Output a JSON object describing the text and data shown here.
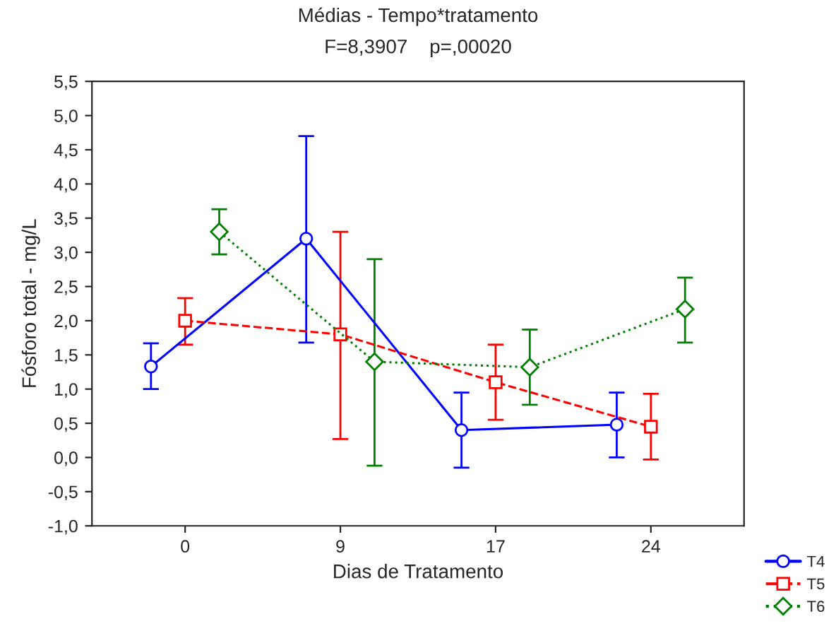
{
  "chart_data": {
    "type": "line",
    "title": "Médias - Tempo*tratamento",
    "subtitle": "F=8,3907    p=,00020",
    "xlabel": "Dias de Tratamento",
    "ylabel": "Fósforo total - mg/L",
    "categories": [
      "0",
      "9",
      "17",
      "24"
    ],
    "series": [
      {
        "name": "T4",
        "color": "#0000ff",
        "marker": "circle",
        "line_style": "solid",
        "values": [
          1.33,
          3.2,
          0.4,
          0.48
        ],
        "errors": [
          [
            1.0,
            1.67
          ],
          [
            1.68,
            4.7
          ],
          [
            -0.15,
            0.95
          ],
          [
            0.0,
            0.95
          ]
        ]
      },
      {
        "name": "T5",
        "color": "#ff0000",
        "marker": "square",
        "line_style": "dashed",
        "values": [
          2.0,
          1.8,
          1.1,
          0.45
        ],
        "errors": [
          [
            1.65,
            2.33
          ],
          [
            0.27,
            3.3
          ],
          [
            0.55,
            1.65
          ],
          [
            -0.03,
            0.93
          ]
        ]
      },
      {
        "name": "T6",
        "color": "#008000",
        "marker": "diamond",
        "line_style": "dotted",
        "values": [
          3.3,
          1.4,
          1.32,
          2.17
        ],
        "errors": [
          [
            2.97,
            3.63
          ],
          [
            -0.12,
            2.9
          ],
          [
            0.77,
            1.87
          ],
          [
            1.68,
            2.63
          ]
        ]
      }
    ],
    "ylim": [
      -1.0,
      5.5
    ],
    "yticks": [
      {
        "value": -1.0,
        "label": "-1,0"
      },
      {
        "value": -0.5,
        "label": "-0,5"
      },
      {
        "value": 0.0,
        "label": "0,0"
      },
      {
        "value": 0.5,
        "label": "0,5"
      },
      {
        "value": 1.0,
        "label": "1,0"
      },
      {
        "value": 1.5,
        "label": "1,5"
      },
      {
        "value": 2.0,
        "label": "2,0"
      },
      {
        "value": 2.5,
        "label": "2,5"
      },
      {
        "value": 3.0,
        "label": "3,0"
      },
      {
        "value": 3.5,
        "label": "3,5"
      },
      {
        "value": 4.0,
        "label": "4,0"
      },
      {
        "value": 4.5,
        "label": "4,5"
      },
      {
        "value": 5.0,
        "label": "5,0"
      },
      {
        "value": 5.5,
        "label": "5,5"
      }
    ],
    "grid": false,
    "legend": "bottom right"
  }
}
